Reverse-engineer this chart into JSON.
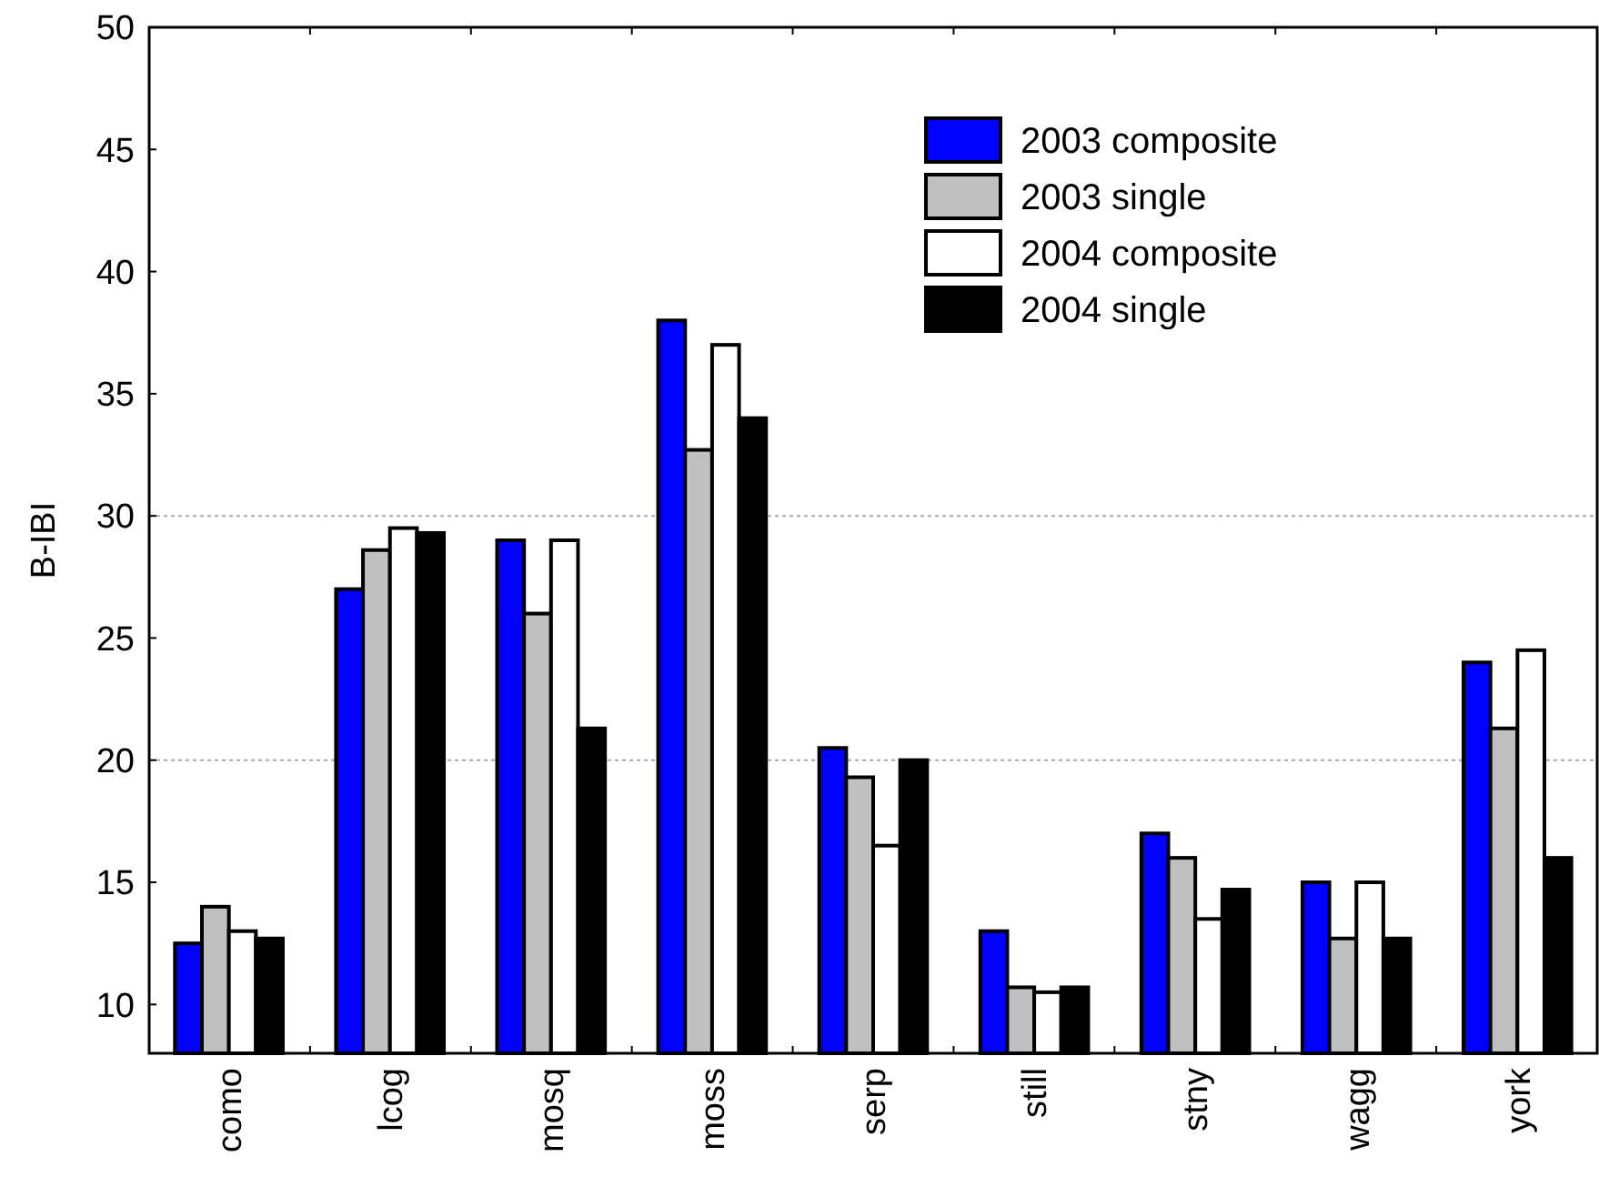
{
  "chart_data": {
    "type": "bar",
    "ylabel": "B-IBI",
    "categories": [
      "como",
      "lcog",
      "mosq",
      "moss",
      "serp",
      "still",
      "stny",
      "wagg",
      "york"
    ],
    "series": [
      {
        "name": "2003 composite",
        "color": "#0000ff",
        "values": [
          12.5,
          27,
          29,
          38,
          20.5,
          13,
          17,
          15,
          24
        ]
      },
      {
        "name": "2003 single",
        "color": "#c0c0c0",
        "values": [
          14,
          28.6,
          26,
          32.7,
          19.3,
          10.7,
          16,
          12.7,
          21.3
        ]
      },
      {
        "name": "2004 composite",
        "color": "#ffffff",
        "values": [
          13,
          29.5,
          29,
          37,
          16.5,
          10.5,
          13.5,
          15,
          24.5
        ]
      },
      {
        "name": "2004 single",
        "color": "#000000",
        "values": [
          12.7,
          29.3,
          21.3,
          34,
          20,
          10.7,
          14.7,
          12.7,
          16
        ]
      }
    ],
    "ylim": [
      8,
      50
    ],
    "yticks": [
      10,
      15,
      20,
      25,
      30,
      35,
      40,
      45,
      50
    ],
    "ref_lines": [
      {
        "axis": "y",
        "value": 20,
        "color": "#aaaaaa",
        "line_style": "dotted"
      },
      {
        "axis": "y",
        "value": 30,
        "color": "#aaaaaa",
        "line_style": "dotted"
      }
    ],
    "legend": "top right"
  }
}
